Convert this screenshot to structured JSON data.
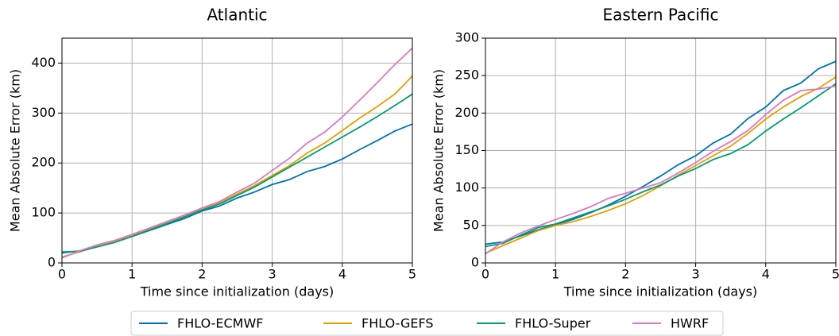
{
  "chart_data": [
    {
      "type": "line",
      "title": "Atlantic",
      "xlabel": "Time since initialization (days)",
      "ylabel": "Mean Absolute Error (km)",
      "x": [
        0,
        0.25,
        0.5,
        0.75,
        1,
        1.25,
        1.5,
        1.75,
        2,
        2.25,
        2.5,
        2.75,
        3,
        3.25,
        3.5,
        3.75,
        4,
        4.25,
        4.5,
        4.75,
        5
      ],
      "xlim": [
        0,
        5
      ],
      "xticks": [
        0,
        1,
        2,
        3,
        4,
        5
      ],
      "ylim": [
        0,
        450
      ],
      "yticks": [
        0,
        100,
        200,
        300,
        400
      ],
      "grid": true,
      "series": [
        {
          "name": "FHLO-ECMWF",
          "color": "#0072b2",
          "values": [
            20,
            24,
            33,
            42,
            53,
            65,
            77,
            89,
            104,
            114,
            130,
            142,
            157,
            167,
            183,
            193,
            208,
            227,
            245,
            264,
            278
          ]
        },
        {
          "name": "FHLO-GEFS",
          "color": "#e69f00",
          "values": [
            12,
            22,
            33,
            43,
            55,
            67,
            80,
            93,
            108,
            120,
            138,
            155,
            175,
            195,
            220,
            240,
            265,
            290,
            313,
            338,
            374
          ]
        },
        {
          "name": "FHLO-Super",
          "color": "#009e73",
          "values": [
            22,
            23,
            32,
            41,
            53,
            66,
            79,
            92,
            106,
            118,
            135,
            152,
            172,
            192,
            212,
            232,
            252,
            272,
            293,
            315,
            338
          ]
        },
        {
          "name": "HWRF",
          "color": "#dc79c4",
          "values": [
            10,
            24,
            36,
            45,
            57,
            70,
            83,
            96,
            110,
            123,
            142,
            160,
            185,
            210,
            240,
            262,
            292,
            326,
            361,
            397,
            430
          ]
        }
      ]
    },
    {
      "type": "line",
      "title": "Eastern Pacific",
      "xlabel": "Time since initialization (days)",
      "ylabel": "Mean Absolute Error (km)",
      "x": [
        0,
        0.25,
        0.5,
        0.75,
        1,
        1.25,
        1.5,
        1.75,
        2,
        2.25,
        2.5,
        2.75,
        3,
        3.25,
        3.5,
        3.75,
        4,
        4.25,
        4.5,
        4.75,
        5
      ],
      "xlim": [
        0,
        5
      ],
      "xticks": [
        0,
        1,
        2,
        3,
        4,
        5
      ],
      "ylim": [
        0,
        300
      ],
      "yticks": [
        0,
        50,
        100,
        150,
        200,
        250,
        300
      ],
      "grid": true,
      "series": [
        {
          "color": "#0072b2",
          "values": [
            25,
            28,
            36,
            44,
            51,
            58,
            67,
            77,
            89,
            102,
            116,
            131,
            143,
            160,
            172,
            193,
            208,
            230,
            240,
            259,
            269
          ]
        },
        {
          "color": "#e69f00",
          "values": [
            13,
            23,
            33,
            43,
            50,
            55,
            62,
            70,
            79,
            90,
            103,
            117,
            130,
            143,
            156,
            173,
            192,
            208,
            222,
            233,
            248
          ]
        },
        {
          "color": "#009e73",
          "values": [
            22,
            26,
            37,
            47,
            52,
            60,
            68,
            76,
            85,
            95,
            104,
            116,
            126,
            138,
            146,
            158,
            176,
            192,
            207,
            223,
            239
          ]
        },
        {
          "color": "#dc79c4",
          "values": [
            12,
            28,
            40,
            49,
            58,
            66,
            75,
            86,
            93,
            100,
            107,
            120,
            134,
            149,
            162,
            177,
            198,
            217,
            230,
            232,
            236
          ]
        }
      ]
    }
  ]
}
